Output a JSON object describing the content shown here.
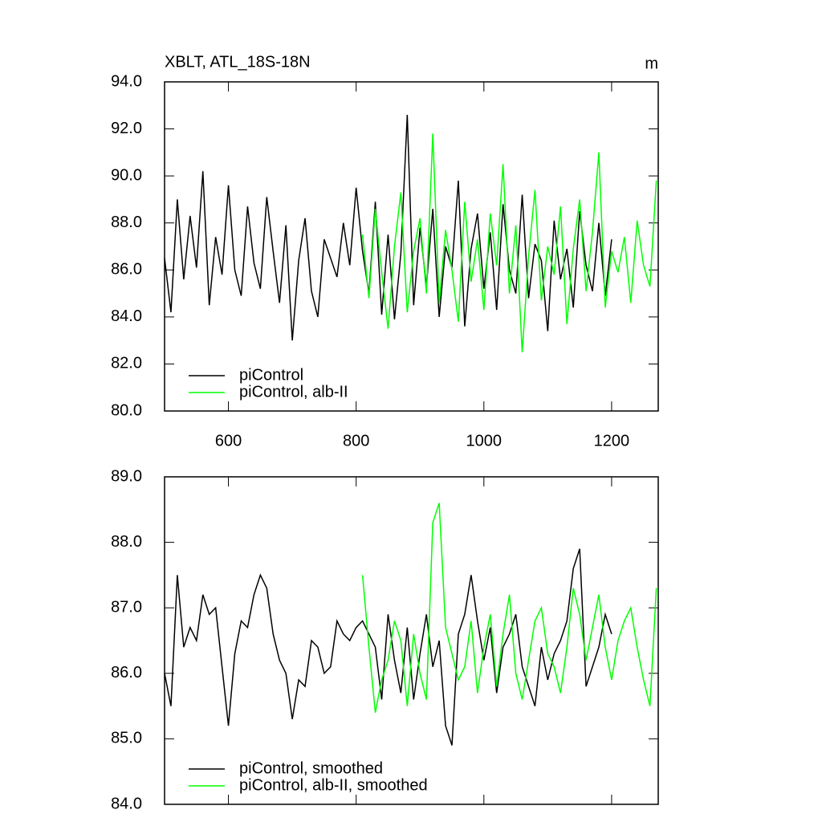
{
  "chart_data": [
    {
      "type": "line",
      "title": "XBLT, ATL_18S-18N",
      "units_label": "m",
      "x": [
        500,
        510,
        520,
        530,
        540,
        550,
        560,
        570,
        580,
        590,
        600,
        610,
        620,
        630,
        640,
        650,
        660,
        670,
        680,
        690,
        700,
        710,
        720,
        730,
        740,
        750,
        760,
        770,
        780,
        790,
        800,
        810,
        820,
        830,
        840,
        850,
        860,
        870,
        880,
        890,
        900,
        910,
        920,
        930,
        940,
        950,
        960,
        970,
        980,
        990,
        1000,
        1010,
        1020,
        1030,
        1040,
        1050,
        1060,
        1070,
        1080,
        1090,
        1100,
        1110,
        1120,
        1130,
        1140,
        1150,
        1160,
        1170,
        1180,
        1190,
        1200,
        1210,
        1220,
        1230,
        1240,
        1250,
        1260,
        1270
      ],
      "series": [
        {
          "name": "piControl",
          "color": "#000000",
          "values": [
            86.5,
            84.2,
            89.0,
            85.6,
            88.3,
            86.1,
            90.2,
            84.5,
            87.4,
            85.8,
            89.6,
            86.0,
            84.9,
            88.7,
            86.3,
            85.2,
            89.1,
            86.8,
            84.6,
            87.9,
            83.0,
            86.4,
            88.2,
            85.1,
            84.0,
            87.3,
            86.5,
            85.7,
            88.0,
            86.2,
            89.5,
            86.8,
            85.0,
            88.9,
            84.1,
            87.5,
            83.9,
            86.7,
            92.6,
            84.5,
            87.8,
            85.3,
            88.6,
            84.0,
            87.0,
            86.1,
            89.8,
            83.6,
            86.9,
            88.4,
            85.2,
            87.6,
            84.3,
            88.8,
            86.0,
            85.0,
            89.2,
            84.8,
            87.1,
            86.4,
            83.4,
            88.1,
            85.6,
            86.9,
            84.4,
            88.5,
            86.2,
            85.1,
            88.0,
            84.9,
            87.3,
            null,
            null,
            null,
            null,
            null,
            null,
            null
          ]
        },
        {
          "name": "piControl, alb-II",
          "color": "#00ff00",
          "values": [
            null,
            null,
            null,
            null,
            null,
            null,
            null,
            null,
            null,
            null,
            null,
            null,
            null,
            null,
            null,
            null,
            null,
            null,
            null,
            null,
            null,
            null,
            null,
            null,
            null,
            null,
            null,
            null,
            null,
            null,
            null,
            87.5,
            84.8,
            88.6,
            85.9,
            83.5,
            87.0,
            89.3,
            84.2,
            86.8,
            88.2,
            85.0,
            91.8,
            84.6,
            87.7,
            86.0,
            83.8,
            88.9,
            85.5,
            87.3,
            84.3,
            88.4,
            86.2,
            90.5,
            85.0,
            87.9,
            82.5,
            86.6,
            89.4,
            84.7,
            87.0,
            85.8,
            88.7,
            83.7,
            86.9,
            89.0,
            85.1,
            87.6,
            91.0,
            84.4,
            86.8,
            85.9,
            87.4,
            84.6,
            88.1,
            86.2,
            85.3,
            89.8
          ]
        }
      ],
      "xlim": [
        500,
        1273
      ],
      "xticks": [
        600,
        800,
        1000,
        1200
      ],
      "ylim": [
        80,
        94
      ],
      "yticks": [
        {
          "value": 80,
          "label": "80.0"
        },
        {
          "value": 82,
          "label": "82.0"
        },
        {
          "value": 84,
          "label": "84.0"
        },
        {
          "value": 86,
          "label": "86.0"
        },
        {
          "value": 88,
          "label": "88.0"
        },
        {
          "value": 90,
          "label": "90.0"
        },
        {
          "value": 92,
          "label": "92.0"
        },
        {
          "value": 94,
          "label": "94.0"
        }
      ],
      "legend": "lower left"
    },
    {
      "type": "line",
      "x": [
        500,
        510,
        520,
        530,
        540,
        550,
        560,
        570,
        580,
        590,
        600,
        610,
        620,
        630,
        640,
        650,
        660,
        670,
        680,
        690,
        700,
        710,
        720,
        730,
        740,
        750,
        760,
        770,
        780,
        790,
        800,
        810,
        820,
        830,
        840,
        850,
        860,
        870,
        880,
        890,
        900,
        910,
        920,
        930,
        940,
        950,
        960,
        970,
        980,
        990,
        1000,
        1010,
        1020,
        1030,
        1040,
        1050,
        1060,
        1070,
        1080,
        1090,
        1100,
        1110,
        1120,
        1130,
        1140,
        1150,
        1160,
        1170,
        1180,
        1190,
        1200,
        1210,
        1220,
        1230,
        1240,
        1250,
        1260,
        1270
      ],
      "series": [
        {
          "name": "piControl, smoothed",
          "color": "#000000",
          "values": [
            86.0,
            85.5,
            87.5,
            86.4,
            86.7,
            86.5,
            87.2,
            86.9,
            87.0,
            86.1,
            85.2,
            86.3,
            86.8,
            86.7,
            87.2,
            87.5,
            87.3,
            86.6,
            86.2,
            86.0,
            85.3,
            85.9,
            85.8,
            86.5,
            86.4,
            86.0,
            86.1,
            86.8,
            86.6,
            86.5,
            86.7,
            86.8,
            86.6,
            86.4,
            85.6,
            86.9,
            86.2,
            85.7,
            86.7,
            85.6,
            86.3,
            86.9,
            86.1,
            86.5,
            85.2,
            84.9,
            86.6,
            86.9,
            87.5,
            86.8,
            86.2,
            86.7,
            85.7,
            86.4,
            86.6,
            86.9,
            86.1,
            85.8,
            85.5,
            86.4,
            85.9,
            86.3,
            86.5,
            86.8,
            87.6,
            87.9,
            85.8,
            86.1,
            86.4,
            86.9,
            86.6,
            null,
            null,
            null,
            null,
            null,
            null,
            null
          ]
        },
        {
          "name": "piControl, alb-II, smoothed",
          "color": "#00ff00",
          "values": [
            null,
            null,
            null,
            null,
            null,
            null,
            null,
            null,
            null,
            null,
            null,
            null,
            null,
            null,
            null,
            null,
            null,
            null,
            null,
            null,
            null,
            null,
            null,
            null,
            null,
            null,
            null,
            null,
            null,
            null,
            null,
            87.5,
            86.4,
            85.4,
            85.9,
            86.2,
            86.8,
            86.5,
            85.5,
            86.6,
            86.0,
            85.6,
            88.3,
            88.6,
            86.7,
            86.3,
            85.9,
            86.1,
            86.8,
            85.7,
            86.4,
            86.9,
            85.8,
            86.6,
            87.2,
            86.0,
            85.6,
            86.2,
            86.8,
            87.0,
            86.3,
            86.1,
            85.7,
            86.4,
            87.3,
            86.9,
            86.2,
            86.7,
            87.2,
            86.4,
            85.9,
            86.5,
            86.8,
            87.0,
            86.4,
            85.9,
            85.5,
            87.3
          ]
        }
      ],
      "xlim": [
        500,
        1273
      ],
      "xticks": [
        600,
        800,
        1000,
        1200
      ],
      "ylim": [
        84,
        89
      ],
      "yticks": [
        {
          "value": 84,
          "label": "84.0"
        },
        {
          "value": 85,
          "label": "85.0"
        },
        {
          "value": 86,
          "label": "86.0"
        },
        {
          "value": 87,
          "label": "87.0"
        },
        {
          "value": 88,
          "label": "88.0"
        },
        {
          "value": 89,
          "label": "89.0"
        }
      ],
      "legend": "lower left"
    }
  ]
}
